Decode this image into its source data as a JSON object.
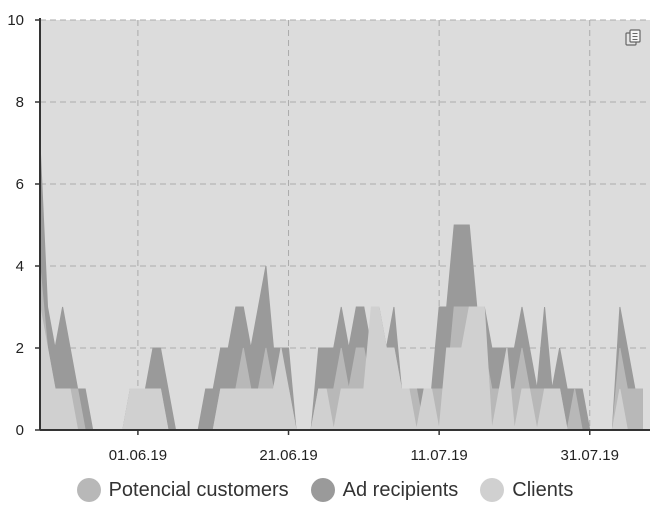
{
  "chart_data": {
    "type": "area",
    "title": "",
    "xlabel": "",
    "ylabel": "",
    "ylim": [
      0,
      10
    ],
    "yticks": [
      0,
      2,
      4,
      6,
      8,
      10
    ],
    "xlim": [
      "2019-05-19",
      "2019-08-08"
    ],
    "xticks": [
      "01.06.19",
      "21.06.19",
      "11.07.19",
      "31.07.19"
    ],
    "x": [
      "2019-05-19",
      "2019-05-20",
      "2019-05-21",
      "2019-05-22",
      "2019-05-23",
      "2019-05-24",
      "2019-05-25",
      "2019-05-26",
      "2019-05-27",
      "2019-05-28",
      "2019-05-29",
      "2019-05-30",
      "2019-05-31",
      "2019-06-01",
      "2019-06-02",
      "2019-06-03",
      "2019-06-04",
      "2019-06-05",
      "2019-06-06",
      "2019-06-07",
      "2019-06-08",
      "2019-06-09",
      "2019-06-10",
      "2019-06-11",
      "2019-06-12",
      "2019-06-13",
      "2019-06-14",
      "2019-06-15",
      "2019-06-16",
      "2019-06-17",
      "2019-06-18",
      "2019-06-19",
      "2019-06-20",
      "2019-06-21",
      "2019-06-22",
      "2019-06-23",
      "2019-06-24",
      "2019-06-25",
      "2019-06-26",
      "2019-06-27",
      "2019-06-28",
      "2019-06-29",
      "2019-06-30",
      "2019-07-01",
      "2019-07-02",
      "2019-07-03",
      "2019-07-04",
      "2019-07-05",
      "2019-07-06",
      "2019-07-07",
      "2019-07-08",
      "2019-07-09",
      "2019-07-10",
      "2019-07-11",
      "2019-07-12",
      "2019-07-13",
      "2019-07-14",
      "2019-07-15",
      "2019-07-16",
      "2019-07-17",
      "2019-07-18",
      "2019-07-19",
      "2019-07-20",
      "2019-07-21",
      "2019-07-22",
      "2019-07-23",
      "2019-07-24",
      "2019-07-25",
      "2019-07-26",
      "2019-07-27",
      "2019-07-28",
      "2019-07-29",
      "2019-07-30",
      "2019-07-31",
      "2019-08-01",
      "2019-08-02",
      "2019-08-03",
      "2019-08-04",
      "2019-08-05",
      "2019-08-06",
      "2019-08-07"
    ],
    "series": [
      {
        "name": "Ad recipients",
        "color": "#9a9a9a",
        "values": [
          7,
          3,
          2,
          3,
          2,
          1,
          1,
          0,
          0,
          0,
          0,
          0,
          1,
          1,
          1,
          2,
          2,
          1,
          0,
          0,
          0,
          0,
          1,
          1,
          2,
          2,
          3,
          3,
          2,
          3,
          4,
          2,
          2,
          2,
          0,
          0,
          0,
          2,
          2,
          2,
          3,
          2,
          3,
          3,
          2,
          3,
          2,
          3,
          1,
          1,
          1,
          1,
          1,
          3,
          3,
          5,
          5,
          5,
          3,
          3,
          2,
          2,
          2,
          2,
          3,
          2,
          1,
          3,
          1,
          2,
          1,
          1,
          1,
          0,
          0,
          0,
          0,
          3,
          2,
          1,
          1
        ]
      },
      {
        "name": "Potencial customers",
        "color": "#b8b8b8",
        "values": [
          4,
          2,
          1,
          1,
          1,
          1,
          0,
          0,
          0,
          0,
          0,
          0,
          1,
          1,
          1,
          1,
          1,
          0,
          0,
          0,
          0,
          0,
          0,
          0,
          1,
          1,
          1,
          2,
          1,
          1,
          2,
          1,
          1,
          1,
          0,
          0,
          0,
          1,
          1,
          1,
          2,
          1,
          2,
          2,
          1,
          2,
          1,
          2,
          1,
          1,
          1,
          0,
          1,
          1,
          1,
          3,
          3,
          3,
          2,
          2,
          1,
          1,
          1,
          1,
          2,
          1,
          1,
          1,
          1,
          1,
          0,
          1,
          0,
          0,
          0,
          0,
          0,
          2,
          1,
          1,
          1
        ]
      },
      {
        "name": "Clients",
        "color": "#d0d0d0",
        "values": [
          3,
          2,
          1,
          1,
          1,
          0,
          0,
          0,
          0,
          0,
          0,
          0,
          1,
          1,
          1,
          1,
          1,
          0,
          0,
          0,
          0,
          0,
          0,
          0,
          1,
          1,
          1,
          1,
          1,
          1,
          1,
          1,
          2,
          1,
          0,
          0,
          0,
          1,
          1,
          0,
          1,
          1,
          1,
          1,
          3,
          3,
          2,
          2,
          1,
          1,
          0,
          1,
          1,
          0,
          2,
          2,
          2,
          3,
          3,
          3,
          0,
          1,
          2,
          0,
          1,
          1,
          0,
          1,
          1,
          1,
          0,
          0,
          0,
          0,
          0,
          0,
          0,
          1,
          0,
          0,
          0
        ]
      }
    ],
    "legend_position": "bottom",
    "grid": true,
    "plot_background": "#dcdcdc",
    "grid_color": "#ababab",
    "icon": "copy-pages-icon",
    "legend": [
      {
        "label": "Potencial customers",
        "color": "#b8b8b8"
      },
      {
        "label": "Ad recipients",
        "color": "#9a9a9a"
      },
      {
        "label": "Clients",
        "color": "#d0d0d0"
      }
    ]
  }
}
